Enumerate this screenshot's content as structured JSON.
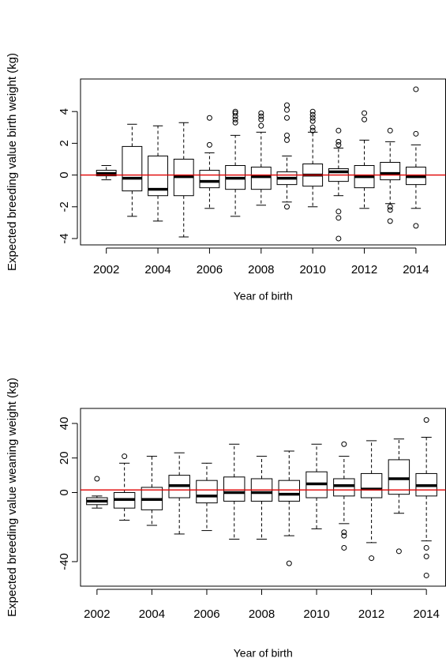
{
  "chart_data": [
    {
      "type": "boxplot",
      "y_label": "Expected breeding value birth weight (kg)",
      "x_label": "Year of birth",
      "x": [
        2002,
        2003,
        2004,
        2005,
        2006,
        2007,
        2008,
        2009,
        2010,
        2011,
        2012,
        2013,
        2014
      ],
      "xlim": [
        2001.0,
        2015.15
      ],
      "xticks": [
        2002,
        2004,
        2006,
        2008,
        2010,
        2012,
        2014
      ],
      "ylim": [
        -4.4,
        6.05
      ],
      "yticks": [
        -4,
        -2,
        0,
        2,
        4
      ],
      "reference_line": 0,
      "reference_color": "#e00000",
      "boxes": [
        {
          "low": -0.3,
          "q1": -0.05,
          "median": 0.1,
          "q3": 0.3,
          "high": 0.6,
          "outliers": []
        },
        {
          "low": -2.6,
          "q1": -1.0,
          "median": -0.2,
          "q3": 1.8,
          "high": 3.2,
          "outliers": []
        },
        {
          "low": -2.9,
          "q1": -1.3,
          "median": -0.9,
          "q3": 1.2,
          "high": 3.1,
          "outliers": []
        },
        {
          "low": -3.9,
          "q1": -1.3,
          "median": -0.1,
          "q3": 1.0,
          "high": 3.3,
          "outliers": []
        },
        {
          "low": -2.1,
          "q1": -0.8,
          "median": -0.4,
          "q3": 0.3,
          "high": 1.4,
          "outliers": [
            1.9,
            3.6
          ]
        },
        {
          "low": -2.6,
          "q1": -0.9,
          "median": -0.2,
          "q3": 0.6,
          "high": 2.5,
          "outliers": [
            3.3,
            3.5,
            3.7,
            3.9,
            4.0
          ]
        },
        {
          "low": -1.9,
          "q1": -0.9,
          "median": -0.1,
          "q3": 0.5,
          "high": 2.7,
          "outliers": [
            3.1,
            3.5,
            3.7,
            3.9
          ]
        },
        {
          "low": -1.7,
          "q1": -0.6,
          "median": -0.2,
          "q3": 0.2,
          "high": 1.2,
          "outliers": [
            -2.0,
            2.2,
            2.5,
            3.6,
            4.1,
            4.4
          ]
        },
        {
          "low": -2.0,
          "q1": -0.7,
          "median": 0.0,
          "q3": 0.7,
          "high": 2.7,
          "outliers": [
            2.8,
            3.0,
            3.4,
            3.6,
            3.8,
            4.0
          ]
        },
        {
          "low": -1.3,
          "q1": -0.4,
          "median": 0.2,
          "q3": 0.4,
          "high": 1.7,
          "outliers": [
            -2.3,
            -2.7,
            -4.0,
            1.9,
            2.1,
            2.8
          ]
        },
        {
          "low": -2.1,
          "q1": -0.8,
          "median": -0.1,
          "q3": 0.6,
          "high": 2.2,
          "outliers": [
            3.5,
            3.9
          ]
        },
        {
          "low": -1.8,
          "q1": -0.3,
          "median": 0.1,
          "q3": 0.8,
          "high": 2.1,
          "outliers": [
            -2.0,
            -2.2,
            -2.9,
            2.8
          ]
        },
        {
          "low": -2.1,
          "q1": -0.6,
          "median": -0.1,
          "q3": 0.5,
          "high": 1.9,
          "outliers": [
            -3.2,
            2.6,
            5.4
          ]
        }
      ]
    },
    {
      "type": "boxplot",
      "y_label": "Expected breeding value weaning weight (kg)",
      "x_label": "Year of birth",
      "x": [
        2002,
        2003,
        2004,
        2005,
        2006,
        2007,
        2008,
        2009,
        2010,
        2011,
        2012,
        2013,
        2014
      ],
      "xlim": [
        2001.4,
        2014.7
      ],
      "xticks": [
        2002,
        2004,
        2006,
        2008,
        2010,
        2012,
        2014
      ],
      "ylim": [
        -54.2,
        48.7
      ],
      "yticks": [
        -40,
        0,
        20,
        40
      ],
      "reference_line": 1.5,
      "reference_color": "#e00000",
      "boxes": [
        {
          "low": -9,
          "q1": -7,
          "median": -5,
          "q3": -3,
          "high": -2,
          "outliers": [
            8
          ]
        },
        {
          "low": -16,
          "q1": -9,
          "median": -4,
          "q3": 0,
          "high": 17,
          "outliers": [
            21
          ]
        },
        {
          "low": -19,
          "q1": -10,
          "median": -4,
          "q3": 3,
          "high": 21,
          "outliers": []
        },
        {
          "low": -24,
          "q1": -3,
          "median": 4,
          "q3": 10,
          "high": 23,
          "outliers": []
        },
        {
          "low": -22,
          "q1": -6,
          "median": -2,
          "q3": 7,
          "high": 17,
          "outliers": []
        },
        {
          "low": -27,
          "q1": -5,
          "median": 0,
          "q3": 9,
          "high": 28,
          "outliers": []
        },
        {
          "low": -27,
          "q1": -5,
          "median": 0,
          "q3": 8,
          "high": 21,
          "outliers": []
        },
        {
          "low": -25,
          "q1": -5,
          "median": -1,
          "q3": 7,
          "high": 24,
          "outliers": [
            -41
          ]
        },
        {
          "low": -21,
          "q1": -3,
          "median": 5,
          "q3": 12,
          "high": 28,
          "outliers": []
        },
        {
          "low": -18,
          "q1": -2,
          "median": 4,
          "q3": 8,
          "high": 21,
          "outliers": [
            -23,
            -25,
            -32,
            28
          ]
        },
        {
          "low": -29,
          "q1": -3,
          "median": 2,
          "q3": 11,
          "high": 30,
          "outliers": [
            -38
          ]
        },
        {
          "low": -12,
          "q1": -1,
          "median": 8,
          "q3": 19,
          "high": 31,
          "outliers": [
            -34
          ]
        },
        {
          "low": -28,
          "q1": -2,
          "median": 4,
          "q3": 11,
          "high": 32,
          "outliers": [
            -32,
            -37,
            -48,
            42
          ]
        }
      ]
    }
  ]
}
